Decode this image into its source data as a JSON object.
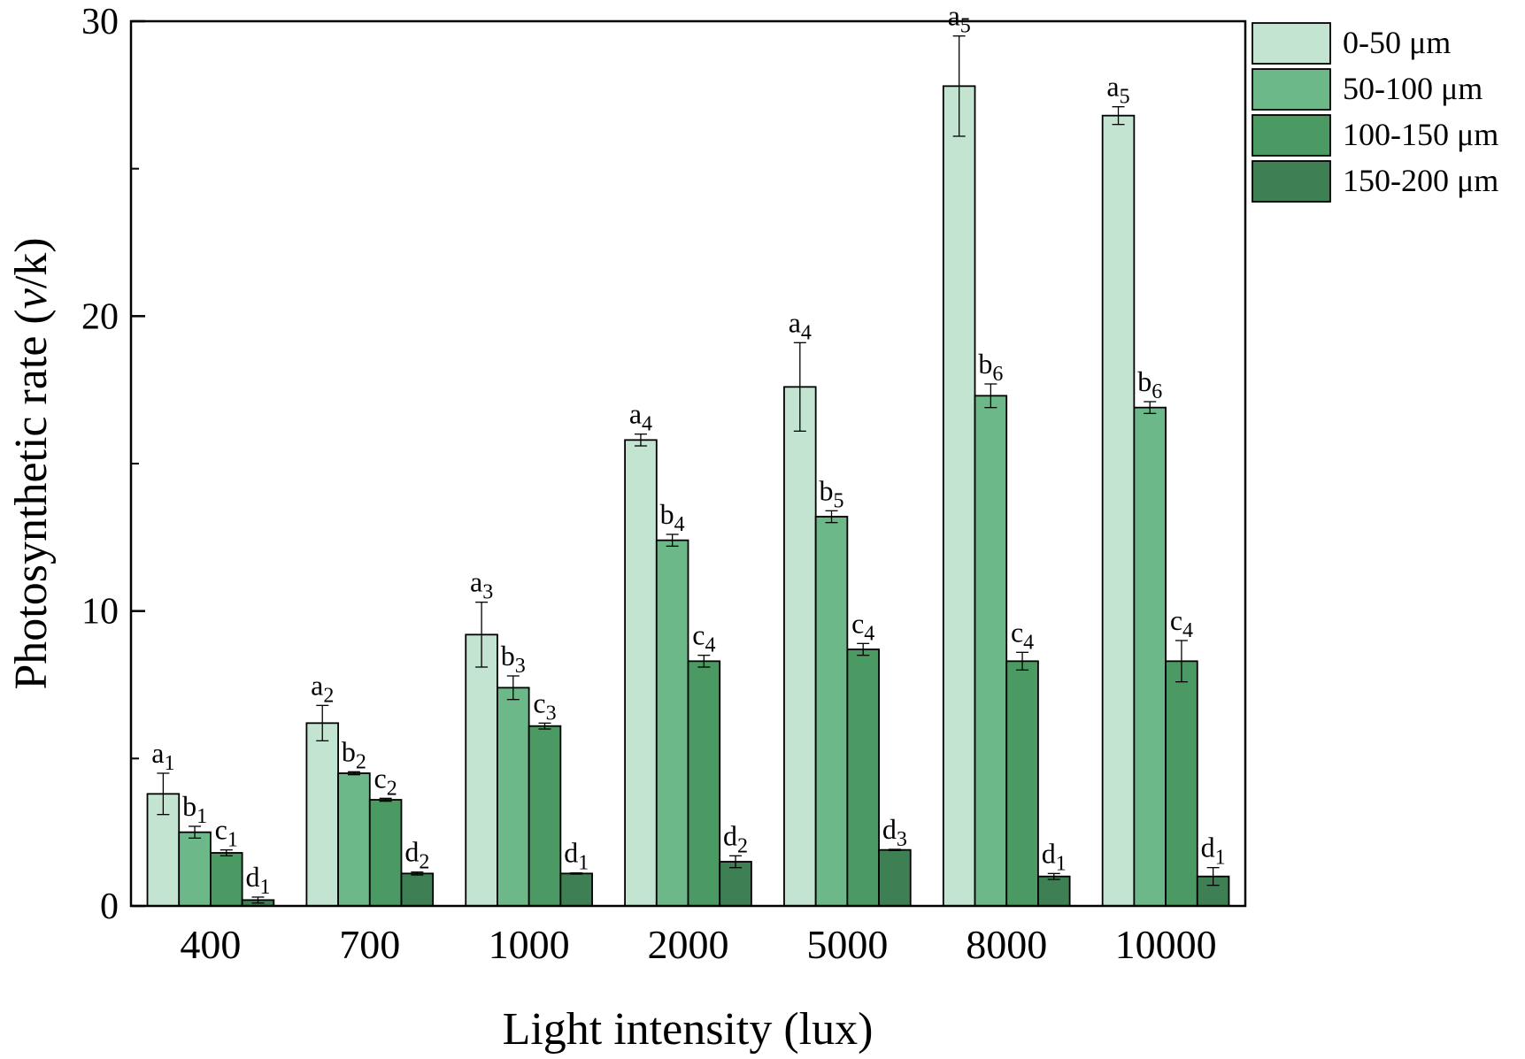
{
  "chart_data": {
    "type": "bar",
    "title": "",
    "xlabel": "Light intensity (lux)",
    "ylabel_prefix": "Photosynthetic rate (",
    "ylabel_italic": "v",
    "ylabel_suffix": "/k)",
    "ylim": [
      0,
      30
    ],
    "yticks": [
      0,
      10,
      20,
      30
    ],
    "yminor": [
      5,
      15,
      25
    ],
    "grid": false,
    "legend_placement": "top-right",
    "categories": [
      "400",
      "700",
      "1000",
      "2000",
      "5000",
      "8000",
      "10000"
    ],
    "series": [
      {
        "name": "0-50 μm",
        "color": "#c3e4d1",
        "values": [
          3.8,
          6.2,
          9.2,
          15.8,
          17.6,
          27.8,
          26.8
        ],
        "errors": [
          0.7,
          0.6,
          1.1,
          0.2,
          1.5,
          1.7,
          0.3
        ],
        "labels": [
          [
            "a",
            "1"
          ],
          [
            "a",
            "2"
          ],
          [
            "a",
            "3"
          ],
          [
            "a",
            "4"
          ],
          [
            "a",
            "4"
          ],
          [
            "a",
            "5"
          ],
          [
            "a",
            "5"
          ]
        ]
      },
      {
        "name": "50-100 μm",
        "color": "#6db888",
        "values": [
          2.5,
          4.5,
          7.4,
          12.4,
          13.2,
          17.3,
          16.9
        ],
        "errors": [
          0.2,
          0.05,
          0.4,
          0.2,
          0.2,
          0.4,
          0.2
        ],
        "labels": [
          [
            "b",
            "1"
          ],
          [
            "b",
            "2"
          ],
          [
            "b",
            "3"
          ],
          [
            "b",
            "4"
          ],
          [
            "b",
            "5"
          ],
          [
            "b",
            "6"
          ],
          [
            "b",
            "6"
          ]
        ]
      },
      {
        "name": "100-150 μm",
        "color": "#4b9a63",
        "values": [
          1.8,
          3.6,
          6.1,
          8.3,
          8.7,
          8.3,
          8.3
        ],
        "errors": [
          0.1,
          0.05,
          0.1,
          0.2,
          0.2,
          0.3,
          0.7
        ],
        "labels": [
          [
            "c",
            "1"
          ],
          [
            "c",
            "2"
          ],
          [
            "c",
            "3"
          ],
          [
            "c",
            "4"
          ],
          [
            "c",
            "4"
          ],
          [
            "c",
            "4"
          ],
          [
            "c",
            "4"
          ]
        ]
      },
      {
        "name": "150-200 μm",
        "color": "#3e7f53",
        "values": [
          0.2,
          1.1,
          1.1,
          1.5,
          1.9,
          1.0,
          1.0
        ],
        "errors": [
          0.1,
          0.05,
          0.02,
          0.2,
          0.02,
          0.1,
          0.3
        ],
        "labels": [
          [
            "d",
            "1"
          ],
          [
            "d",
            "2"
          ],
          [
            "d",
            "1"
          ],
          [
            "d",
            "2"
          ],
          [
            "d",
            "3"
          ],
          [
            "d",
            "1"
          ],
          [
            "d",
            "1"
          ]
        ]
      }
    ]
  }
}
